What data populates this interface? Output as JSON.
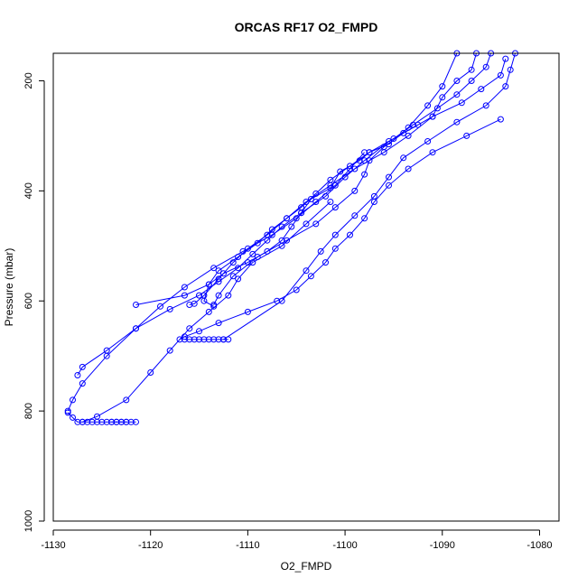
{
  "chart_data": {
    "type": "line",
    "title": "ORCAS RF17 O2_FMPD",
    "xlabel": "O2_FMPD",
    "ylabel": "Pressure (mbar)",
    "xlim": [
      -1130,
      -1078
    ],
    "ylim": [
      1000,
      150
    ],
    "y_inverted": true,
    "x_ticks": [
      -1130,
      -1120,
      -1110,
      -1100,
      -1090,
      -1080
    ],
    "x_tick_labels": [
      "-1130",
      "-1120",
      "-1110",
      "-1100",
      "-1090",
      "-1080"
    ],
    "y_ticks": [
      200,
      400,
      600,
      800,
      1000
    ],
    "y_tick_labels": [
      "200",
      "400",
      "600",
      "800",
      "1000"
    ],
    "grid": false,
    "marker": "open-circle",
    "line_color": "#0000ff",
    "series": [
      {
        "x": [
          -1088.5,
          -1090.0,
          -1091.5,
          -1093.5,
          -1095.5,
          -1097.5,
          -1098.5,
          -1100.5,
          -1101.5,
          -1103.5,
          -1104.5,
          -1105.5,
          -1106.5,
          -1108.0,
          -1110.0,
          -1112.5,
          -1114.0,
          -1116.5,
          -1121.5
        ],
        "y": [
          150,
          210,
          245,
          285,
          315,
          330,
          345,
          365,
          395,
          415,
          440,
          465,
          490,
          510,
          530,
          550,
          570,
          590,
          607
        ]
      },
      {
        "x": [
          -1086.5,
          -1087.0,
          -1088.5,
          -1090.0,
          -1091.0,
          -1093.5,
          -1096.0,
          -1099.0,
          -1101.5,
          -1104.0,
          -1106.0,
          -1108.0,
          -1110.0,
          -1111.5,
          -1113.0,
          -1114.5,
          -1115.5,
          -1116.0
        ],
        "y": [
          150,
          180,
          200,
          230,
          265,
          300,
          330,
          360,
          390,
          420,
          450,
          480,
          505,
          530,
          560,
          590,
          605,
          607
        ]
      },
      {
        "x": [
          -1085.0,
          -1085.5,
          -1087.0,
          -1088.5,
          -1090.5,
          -1093.0,
          -1095.0,
          -1097.5,
          -1099.5,
          -1101.5,
          -1103.0,
          -1104.5,
          -1106.0,
          -1107.5,
          -1109.0,
          -1111.0,
          -1113.0,
          -1114.0,
          -1114.5,
          -1113.5
        ],
        "y": [
          150,
          175,
          200,
          225,
          250,
          280,
          305,
          330,
          355,
          380,
          405,
          430,
          450,
          470,
          495,
          520,
          545,
          570,
          600,
          610
        ]
      },
      {
        "x": [
          -1083.5,
          -1084.0,
          -1086.0,
          -1088.0,
          -1091.0,
          -1094.0,
          -1096.0,
          -1097.5,
          -1098.0,
          -1099.0,
          -1101.0,
          -1103.0,
          -1106.0,
          -1109.0,
          -1111.5,
          -1113.0,
          -1113.5
        ],
        "y": [
          160,
          190,
          215,
          240,
          265,
          295,
          320,
          345,
          370,
          400,
          430,
          460,
          490,
          520,
          555,
          590,
          607
        ]
      },
      {
        "x": [
          -1082.5,
          -1083.0,
          -1083.5,
          -1085.5,
          -1088.5,
          -1091.5,
          -1094.0,
          -1095.5,
          -1097.0,
          -1099.0,
          -1101.0,
          -1102.5,
          -1104.0,
          -1106.5,
          -1112.5
        ],
        "y": [
          150,
          180,
          210,
          245,
          275,
          310,
          340,
          375,
          410,
          445,
          480,
          510,
          545,
          600,
          670
        ]
      },
      {
        "x": [
          -1084.0,
          -1087.5,
          -1091.0,
          -1093.5,
          -1095.5,
          -1097.0,
          -1098.0,
          -1099.5,
          -1101.0,
          -1102.0,
          -1103.5,
          -1105.0,
          -1107.0,
          -1110.0,
          -1113.0,
          -1115.0,
          -1116.5,
          -1117.0
        ],
        "y": [
          270,
          300,
          330,
          360,
          390,
          420,
          450,
          480,
          505,
          530,
          555,
          580,
          600,
          620,
          640,
          655,
          665,
          670
        ]
      },
      {
        "x": [
          -1092.5,
          -1095.5,
          -1098.0,
          -1100.0,
          -1102.0,
          -1104.5,
          -1106.5,
          -1108.0,
          -1109.5,
          -1111.0,
          -1113.0,
          -1115.0,
          -1118.0,
          -1121.5,
          -1124.5,
          -1127.0,
          -1127.5
        ],
        "y": [
          280,
          310,
          345,
          375,
          410,
          440,
          465,
          490,
          515,
          540,
          565,
          590,
          615,
          650,
          690,
          720,
          735
        ]
      },
      {
        "x": [
          -1098.0,
          -1099.5,
          -1101.0,
          -1103.0,
          -1105.0,
          -1107.5,
          -1110.5,
          -1113.5,
          -1116.5,
          -1119.0,
          -1121.5,
          -1124.5,
          -1127.0,
          -1128.0,
          -1128.5
        ],
        "y": [
          330,
          360,
          390,
          420,
          450,
          480,
          510,
          540,
          575,
          610,
          650,
          700,
          750,
          780,
          800
        ]
      },
      {
        "x": [
          -1101.5,
          -1104.0,
          -1106.5,
          -1109.5,
          -1111.0,
          -1112.0,
          -1114.0,
          -1116.0,
          -1118.0,
          -1120.0,
          -1122.5,
          -1125.5,
          -1127.0
        ],
        "y": [
          420,
          460,
          500,
          530,
          560,
          590,
          620,
          650,
          690,
          730,
          780,
          810,
          820
        ]
      },
      {
        "x": [
          -1122.5,
          -1123.0,
          -1123.5,
          -1124.0,
          -1124.5,
          -1125.0,
          -1125.5,
          -1126.0,
          -1126.5,
          -1127.0,
          -1127.5,
          -1128.0,
          -1128.5
        ],
        "y": [
          820,
          820,
          820,
          820,
          820,
          820,
          820,
          820,
          820,
          820,
          820,
          812,
          803
        ]
      },
      {
        "x": [
          -1112.0,
          -1112.5,
          -1113.0,
          -1113.5,
          -1114.0,
          -1114.5,
          -1115.0,
          -1115.5,
          -1116.0,
          -1116.5
        ],
        "y": [
          670,
          670,
          670,
          670,
          670,
          670,
          670,
          670,
          670,
          670
        ]
      },
      {
        "x": [
          -1121.5,
          -1122.0,
          -1122.5,
          -1123.0,
          -1123.5,
          -1124.0
        ],
        "y": [
          820,
          820,
          820,
          820,
          820,
          820
        ]
      }
    ]
  }
}
